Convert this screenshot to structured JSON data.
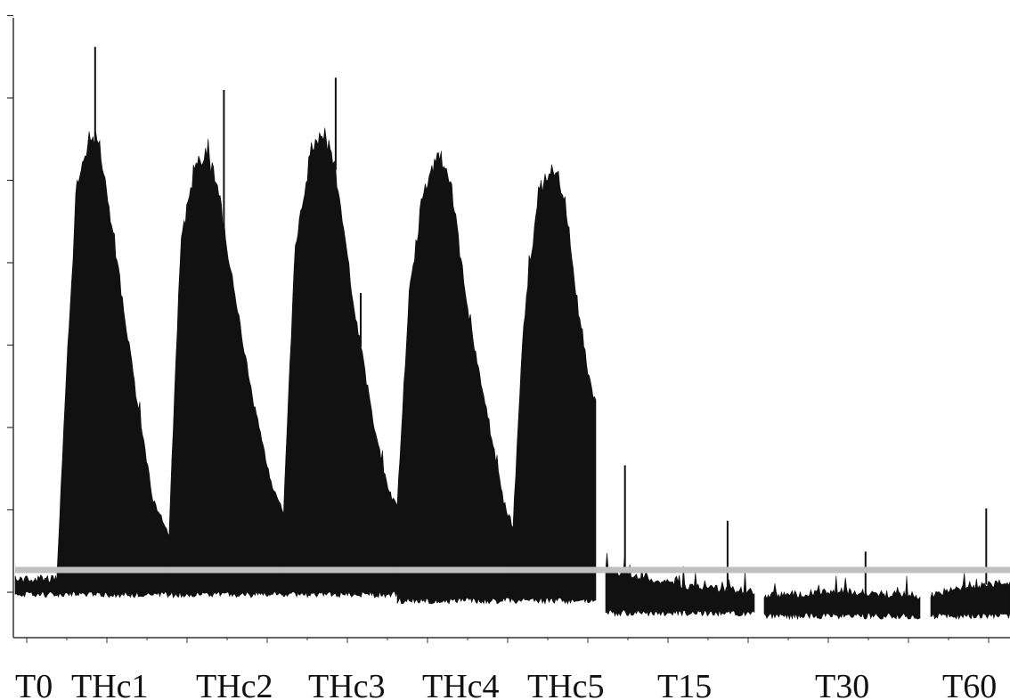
{
  "chart_data": {
    "type": "area",
    "x_labels": [
      "T0",
      "THc1",
      "THc2",
      "THc3",
      "THc4",
      "THc5",
      "T15",
      "T30",
      "T60"
    ],
    "y_ticks_count": 8,
    "grid": false,
    "legend": "none",
    "baseline_level": 0.11,
    "colors": {
      "trace": "#111111",
      "reference_line": "#c0c0c0",
      "axis": "#333333"
    },
    "segments": [
      {
        "name": "T0",
        "bottom": 0.07,
        "top": [
          [
            0,
            0.095
          ],
          [
            1,
            0.095
          ]
        ]
      },
      {
        "name": "THc1",
        "bottom": 0.07,
        "top": [
          [
            0,
            0.1
          ],
          [
            0.08,
            0.42
          ],
          [
            0.18,
            0.74
          ],
          [
            0.3,
            0.82
          ],
          [
            0.38,
            0.8
          ],
          [
            0.52,
            0.63
          ],
          [
            0.7,
            0.4
          ],
          [
            0.86,
            0.22
          ],
          [
            1,
            0.17
          ]
        ]
      },
      {
        "name": "THc2",
        "bottom": 0.07,
        "top": [
          [
            0,
            0.18
          ],
          [
            0.1,
            0.64
          ],
          [
            0.22,
            0.76
          ],
          [
            0.32,
            0.79
          ],
          [
            0.42,
            0.74
          ],
          [
            0.58,
            0.55
          ],
          [
            0.74,
            0.38
          ],
          [
            0.9,
            0.25
          ],
          [
            1,
            0.2
          ]
        ]
      },
      {
        "name": "THc3",
        "bottom": 0.07,
        "top": [
          [
            0,
            0.19
          ],
          [
            0.1,
            0.62
          ],
          [
            0.24,
            0.79
          ],
          [
            0.36,
            0.82
          ],
          [
            0.46,
            0.76
          ],
          [
            0.62,
            0.54
          ],
          [
            0.78,
            0.36
          ],
          [
            0.92,
            0.24
          ],
          [
            1,
            0.21
          ]
        ]
      },
      {
        "name": "THc4",
        "bottom": 0.06,
        "top": [
          [
            0,
            0.22
          ],
          [
            0.1,
            0.55
          ],
          [
            0.22,
            0.72
          ],
          [
            0.36,
            0.79
          ],
          [
            0.46,
            0.74
          ],
          [
            0.62,
            0.52
          ],
          [
            0.8,
            0.34
          ],
          [
            0.92,
            0.22
          ],
          [
            1,
            0.18
          ]
        ]
      },
      {
        "name": "THc5",
        "bottom": 0.06,
        "top": [
          [
            0,
            0.18
          ],
          [
            0.12,
            0.5
          ],
          [
            0.3,
            0.72
          ],
          [
            0.48,
            0.77
          ],
          [
            0.62,
            0.72
          ],
          [
            0.8,
            0.52
          ],
          [
            0.92,
            0.42
          ],
          [
            1,
            0.38
          ]
        ]
      },
      {
        "name": "T15",
        "bottom": 0.04,
        "top": [
          [
            0,
            0.11
          ],
          [
            0.5,
            0.085
          ],
          [
            1,
            0.075
          ]
        ]
      },
      {
        "name": "T30",
        "bottom": 0.035,
        "top": [
          [
            0,
            0.068
          ],
          [
            0.5,
            0.075
          ],
          [
            1,
            0.068
          ]
        ]
      },
      {
        "name": "T60",
        "bottom": 0.035,
        "top": [
          [
            0,
            0.07
          ],
          [
            0.6,
            0.085
          ],
          [
            1,
            0.09
          ]
        ]
      }
    ],
    "spikes": [
      {
        "segment": "THc1",
        "at": 0.34,
        "value": 0.96
      },
      {
        "segment": "THc2",
        "at": 0.48,
        "value": 0.89
      },
      {
        "segment": "THc3",
        "at": 0.46,
        "value": 0.91
      },
      {
        "segment": "THc3",
        "at": 0.68,
        "value": 0.56
      },
      {
        "segment": "T15",
        "at": 0.13,
        "value": 0.28
      },
      {
        "segment": "T15",
        "at": 0.82,
        "value": 0.19
      },
      {
        "segment": "T30",
        "at": 0.65,
        "value": 0.14
      },
      {
        "segment": "T60",
        "at": 0.7,
        "value": 0.21
      }
    ]
  }
}
